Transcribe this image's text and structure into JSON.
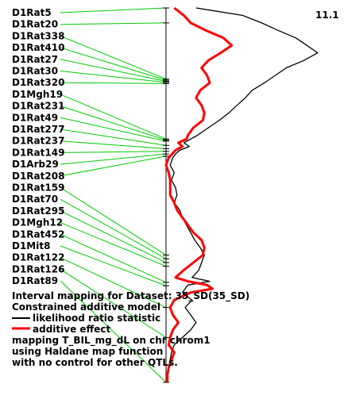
{
  "chart_data": {
    "type": "line",
    "max_value_label": "11.1",
    "markers": [
      {
        "name": "D1Rat5",
        "pos": 0
      },
      {
        "name": "D1Rat20",
        "pos": 4
      },
      {
        "name": "D1Rat338",
        "pos": 19
      },
      {
        "name": "D1Rat410",
        "pos": 19.3
      },
      {
        "name": "D1Rat27",
        "pos": 19.6
      },
      {
        "name": "D1Rat30",
        "pos": 19.9
      },
      {
        "name": "D1Rat320",
        "pos": 20.2
      },
      {
        "name": "D1Mgh19",
        "pos": 35
      },
      {
        "name": "D1Rat231",
        "pos": 35.3
      },
      {
        "name": "D1Rat49",
        "pos": 35.6
      },
      {
        "name": "D1Rat277",
        "pos": 36.7
      },
      {
        "name": "D1Rat237",
        "pos": 37.6
      },
      {
        "name": "D1Rat149",
        "pos": 38.3
      },
      {
        "name": "D1Arb29",
        "pos": 39
      },
      {
        "name": "D1Rat208",
        "pos": 39.6
      },
      {
        "name": "D1Rat159",
        "pos": 66
      },
      {
        "name": "D1Rat70",
        "pos": 67
      },
      {
        "name": "D1Rat295",
        "pos": 68
      },
      {
        "name": "D1Mgh12",
        "pos": 69
      },
      {
        "name": "D1Rat452",
        "pos": 73.3
      },
      {
        "name": "D1Mit8",
        "pos": 74.2
      },
      {
        "name": "D1Rat122",
        "pos": 80
      },
      {
        "name": "D1Rat126",
        "pos": 88
      },
      {
        "name": "D1Rat89",
        "pos": 100
      }
    ],
    "series": [
      {
        "name": "likelihood ratio statistic",
        "color": "#000000",
        "pos": [
          0,
          2,
          4,
          6,
          8,
          10,
          12,
          14,
          16,
          18,
          20,
          22,
          24,
          26,
          28,
          30,
          32,
          34,
          36,
          37,
          38,
          39,
          40,
          42,
          44,
          46,
          48,
          50,
          52,
          54,
          56,
          58,
          60,
          62,
          64,
          66,
          68,
          70,
          72,
          73,
          74,
          76,
          78,
          80,
          82,
          84,
          86,
          88,
          90,
          92,
          94,
          96,
          98,
          100
        ],
        "values": [
          2.2,
          5.6,
          7.0,
          8.2,
          9.5,
          10.3,
          11.1,
          10.1,
          8.8,
          8.0,
          7.2,
          6.3,
          5.8,
          5.2,
          4.6,
          3.9,
          3.1,
          2.3,
          1.3,
          1.7,
          1.0,
          0.7,
          0.5,
          0.3,
          0.6,
          0.4,
          0.7,
          0.8,
          0.6,
          1.0,
          1.2,
          1.5,
          1.8,
          2.1,
          2.5,
          2.8,
          2.6,
          2.4,
          1.9,
          3.2,
          1.6,
          1.2,
          1.9,
          1.4,
          1.8,
          2.2,
          1.8,
          1.2,
          0.6,
          0.4,
          0.3,
          0.2,
          0.1,
          0.1
        ]
      },
      {
        "name": "additive effect",
        "color": "#ff0000",
        "pos": [
          0,
          2,
          4,
          6,
          8,
          10,
          12,
          14,
          16,
          18,
          20,
          22,
          24,
          26,
          28,
          30,
          32,
          34,
          35,
          36,
          37,
          38,
          40,
          42,
          44,
          46,
          48,
          50,
          52,
          54,
          56,
          58,
          60,
          62,
          64,
          66,
          68,
          70,
          72,
          73,
          74,
          75,
          76,
          78,
          80,
          82,
          84,
          86,
          88,
          90,
          92,
          94,
          96,
          98,
          100
        ],
        "values": [
          0.6,
          1.3,
          1.8,
          2.9,
          4.2,
          4.8,
          4.0,
          3.1,
          2.6,
          3.0,
          3.2,
          2.5,
          2.2,
          2.6,
          2.8,
          2.7,
          2.0,
          1.6,
          1.5,
          0.9,
          1.2,
          0.7,
          0.2,
          0.0,
          0.2,
          0.3,
          0.3,
          0.3,
          0.6,
          0.8,
          1.2,
          1.6,
          2.0,
          2.6,
          2.8,
          2.7,
          2.0,
          1.3,
          0.7,
          1.6,
          3.0,
          3.4,
          1.8,
          0.6,
          0.3,
          0.5,
          0.9,
          0.5,
          0.3,
          0.2,
          0.6,
          0.4,
          0.2,
          0.1,
          0.1
        ]
      }
    ],
    "legend": {
      "line1": "Interval mapping for Dataset: 35_SD(35_SD)",
      "line2": "Constrained additive model",
      "entry1": "likelihood ratio statistic",
      "entry2": "additive effect",
      "line5": "mapping T_BIL_mg_dL on chr chrom1",
      "line6": "using Haldane map function",
      "line7": "with no control for other QTLs."
    },
    "colors": {
      "connector": "#00cc00",
      "axis": "#000000",
      "lrs": "#000000",
      "effect": "#ff0000"
    }
  }
}
